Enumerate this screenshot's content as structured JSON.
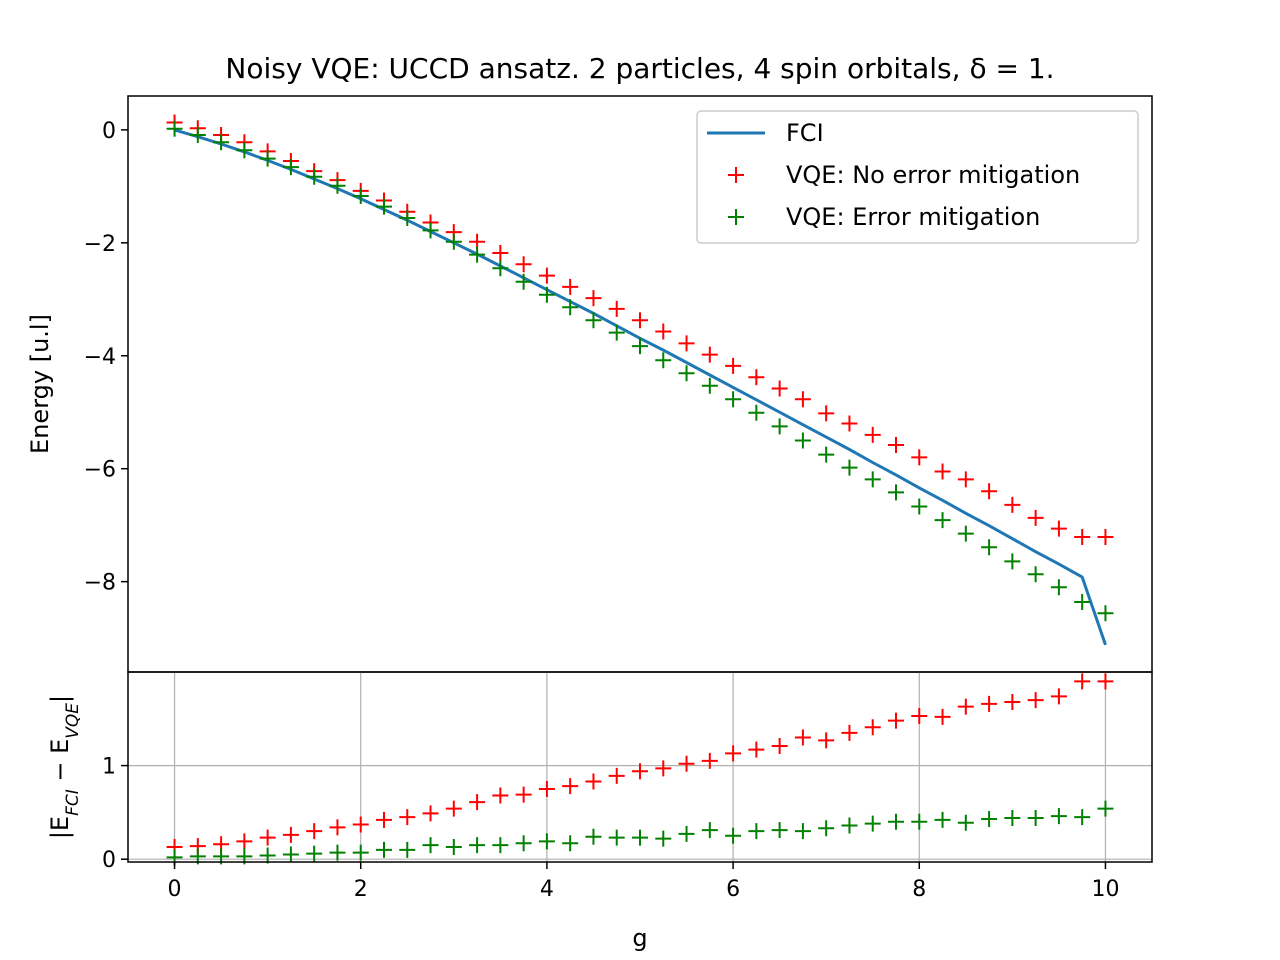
{
  "chart_data": {
    "type": "line",
    "title": "Noisy VQE: UCCD ansatz. 2 particles, 4 spin orbitals, δ = 1.",
    "xlabel": "g",
    "top_panel": {
      "ylabel": "Energy [u.l]",
      "xlim": [
        -0.5,
        10.5
      ],
      "ylim": [
        -9.6,
        0.6
      ],
      "yticks": [
        "0",
        "−2",
        "−4",
        "−6",
        "−8"
      ],
      "ytick_values": [
        0,
        -2,
        -4,
        -6,
        -8
      ],
      "grid": false,
      "legend": "top-right",
      "x": [
        0.0,
        0.25,
        0.5,
        0.75,
        1.0,
        1.25,
        1.5,
        1.75,
        2.0,
        2.25,
        2.5,
        2.75,
        3.0,
        3.25,
        3.5,
        3.75,
        4.0,
        4.25,
        4.5,
        4.75,
        5.0,
        5.25,
        5.5,
        5.75,
        6.0,
        6.25,
        6.5,
        6.75,
        7.0,
        7.25,
        7.5,
        7.75,
        8.0,
        8.25,
        8.5,
        8.75,
        9.0,
        9.25,
        9.5,
        9.75,
        10.0
      ],
      "series": [
        {
          "name": "FCI",
          "style": "line",
          "color": "#1f77b4",
          "values": [
            0.0,
            -0.12,
            -0.25,
            -0.39,
            -0.54,
            -0.7,
            -0.87,
            -1.04,
            -1.22,
            -1.41,
            -1.6,
            -1.8,
            -2.0,
            -2.2,
            -2.41,
            -2.62,
            -2.83,
            -3.04,
            -3.25,
            -3.47,
            -3.69,
            -3.9,
            -4.12,
            -4.34,
            -4.56,
            -4.78,
            -5.0,
            -5.22,
            -5.44,
            -5.66,
            -5.89,
            -6.11,
            -6.34,
            -6.56,
            -6.79,
            -7.01,
            -7.24,
            -7.47,
            -7.69,
            -7.92,
            -9.12
          ]
        },
        {
          "name": "VQE: No error mitigation",
          "style": "marker",
          "color": "#ff0000",
          "values": [
            0.13,
            0.03,
            -0.09,
            -0.22,
            -0.38,
            -0.55,
            -0.73,
            -0.89,
            -1.08,
            -1.25,
            -1.45,
            -1.64,
            -1.81,
            -1.98,
            -2.18,
            -2.38,
            -2.58,
            -2.78,
            -2.98,
            -3.17,
            -3.37,
            -3.57,
            -3.78,
            -3.98,
            -4.18,
            -4.38,
            -4.58,
            -4.77,
            -5.02,
            -5.2,
            -5.4,
            -5.58,
            -5.8,
            -6.05,
            -6.19,
            -6.4,
            -6.64,
            -6.87,
            -7.06,
            -7.21,
            -7.21
          ]
        },
        {
          "name": "VQE: Error mitigation",
          "style": "marker",
          "color": "#008000",
          "values": [
            0.02,
            -0.09,
            -0.22,
            -0.36,
            -0.51,
            -0.66,
            -0.83,
            -0.99,
            -1.17,
            -1.36,
            -1.56,
            -1.78,
            -1.98,
            -2.21,
            -2.45,
            -2.69,
            -2.92,
            -3.14,
            -3.37,
            -3.59,
            -3.83,
            -4.08,
            -4.31,
            -4.53,
            -4.77,
            -5.01,
            -5.25,
            -5.5,
            -5.75,
            -5.98,
            -6.19,
            -6.42,
            -6.67,
            -6.91,
            -7.15,
            -7.39,
            -7.64,
            -7.87,
            -8.1,
            -8.36,
            -8.56
          ]
        }
      ]
    },
    "bottom_panel": {
      "ylabel": "|E_FCI − E_VQE|",
      "xlim": [
        -0.5,
        10.5
      ],
      "ylim": [
        -0.03,
        2.0
      ],
      "yticks": [
        "0",
        "1"
      ],
      "ytick_values": [
        0,
        1
      ],
      "xticks": [
        "0",
        "2",
        "4",
        "6",
        "8",
        "10"
      ],
      "xtick_values": [
        0,
        2,
        4,
        6,
        8,
        10
      ],
      "grid": true,
      "x": [
        0.0,
        0.25,
        0.5,
        0.75,
        1.0,
        1.25,
        1.5,
        1.75,
        2.0,
        2.25,
        2.5,
        2.75,
        3.0,
        3.25,
        3.5,
        3.75,
        4.0,
        4.25,
        4.5,
        4.75,
        5.0,
        5.25,
        5.5,
        5.75,
        6.0,
        6.25,
        6.5,
        6.75,
        7.0,
        7.25,
        7.5,
        7.75,
        8.0,
        8.25,
        8.5,
        8.75,
        9.0,
        9.25,
        9.5,
        9.75,
        10.0
      ],
      "series": [
        {
          "name": "VQE: No error mitigation",
          "style": "marker",
          "color": "#ff0000",
          "values": [
            0.13,
            0.14,
            0.16,
            0.19,
            0.23,
            0.26,
            0.3,
            0.34,
            0.37,
            0.42,
            0.45,
            0.49,
            0.54,
            0.61,
            0.68,
            0.69,
            0.75,
            0.78,
            0.83,
            0.89,
            0.94,
            0.97,
            1.02,
            1.05,
            1.13,
            1.17,
            1.21,
            1.3,
            1.27,
            1.35,
            1.41,
            1.48,
            1.53,
            1.52,
            1.63,
            1.66,
            1.68,
            1.7,
            1.74,
            1.9,
            1.9
          ]
        },
        {
          "name": "VQE: Error mitigation",
          "style": "marker",
          "color": "#008000",
          "values": [
            0.02,
            0.03,
            0.03,
            0.03,
            0.04,
            0.05,
            0.06,
            0.07,
            0.07,
            0.1,
            0.1,
            0.15,
            0.13,
            0.15,
            0.15,
            0.17,
            0.19,
            0.17,
            0.24,
            0.23,
            0.23,
            0.22,
            0.27,
            0.31,
            0.25,
            0.3,
            0.31,
            0.3,
            0.33,
            0.36,
            0.38,
            0.4,
            0.4,
            0.42,
            0.39,
            0.43,
            0.44,
            0.44,
            0.46,
            0.45,
            0.54
          ]
        }
      ]
    }
  }
}
